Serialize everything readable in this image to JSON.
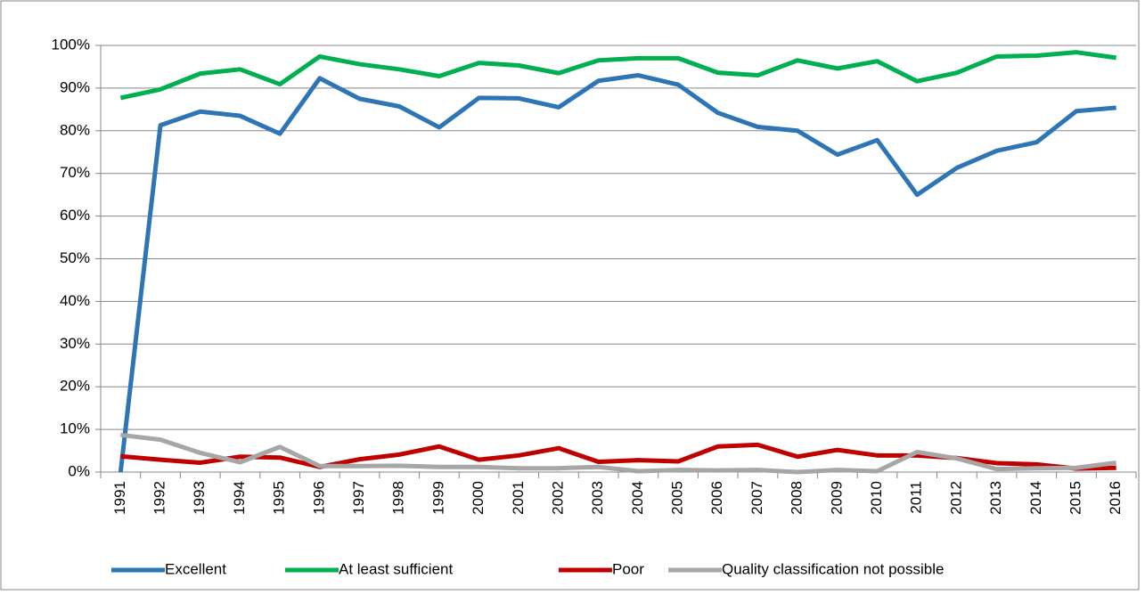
{
  "chart_data": {
    "type": "line",
    "categories": [
      "1991",
      "1992",
      "1993",
      "1994",
      "1995",
      "1996",
      "1997",
      "1998",
      "1999",
      "2000",
      "2001",
      "2002",
      "2003",
      "2004",
      "2005",
      "2006",
      "2007",
      "2008",
      "2009",
      "2010",
      "2011",
      "2012",
      "2013",
      "2014",
      "2015",
      "2016"
    ],
    "series": [
      {
        "name": "Excellent",
        "color": "#2e75b6",
        "values": [
          0,
          81.3,
          84.5,
          83.5,
          79.3,
          92.3,
          87.5,
          85.7,
          80.8,
          87.7,
          87.6,
          85.5,
          91.7,
          93.0,
          90.8,
          84.2,
          80.9,
          80.0,
          74.4,
          77.8,
          65.0,
          71.3,
          75.3,
          77.3,
          84.6,
          85.4
        ]
      },
      {
        "name": "At least sufficient",
        "color": "#00b050",
        "values": [
          87.7,
          89.7,
          93.4,
          94.4,
          90.9,
          97.4,
          95.6,
          94.4,
          92.8,
          95.9,
          95.3,
          93.5,
          96.5,
          97.0,
          97.0,
          93.6,
          93.0,
          96.5,
          94.6,
          96.3,
          91.6,
          93.6,
          97.4,
          97.6,
          98.4,
          97.1
        ]
      },
      {
        "name": "Poor",
        "color": "#c00000",
        "values": [
          3.7,
          2.9,
          2.2,
          3.6,
          3.4,
          1.2,
          3.0,
          4.1,
          6.0,
          2.9,
          3.9,
          5.6,
          2.4,
          2.8,
          2.5,
          6.0,
          6.4,
          3.6,
          5.2,
          3.9,
          3.9,
          3.3,
          2.1,
          1.8,
          0.8,
          1.0
        ]
      },
      {
        "name": "Quality classification not possible",
        "color": "#a6a6a6",
        "values": [
          8.7,
          7.6,
          4.5,
          2.3,
          5.9,
          1.4,
          1.4,
          1.5,
          1.2,
          1.2,
          0.9,
          0.9,
          1.2,
          0.2,
          0.5,
          0.4,
          0.5,
          0.0,
          0.5,
          0.2,
          4.7,
          3.2,
          0.7,
          0.9,
          1.0,
          2.2
        ]
      }
    ],
    "ylim": [
      0,
      100
    ],
    "yticks": [
      {
        "value": 0,
        "label": "0%"
      },
      {
        "value": 10,
        "label": "10%"
      },
      {
        "value": 20,
        "label": "20%"
      },
      {
        "value": 30,
        "label": "30%"
      },
      {
        "value": 40,
        "label": "40%"
      },
      {
        "value": 50,
        "label": "50%"
      },
      {
        "value": 60,
        "label": "60%"
      },
      {
        "value": 70,
        "label": "70%"
      },
      {
        "value": 80,
        "label": "80%"
      },
      {
        "value": 90,
        "label": "90%"
      },
      {
        "value": 100,
        "label": "100%"
      }
    ],
    "grid": true,
    "legend": "bottom"
  }
}
